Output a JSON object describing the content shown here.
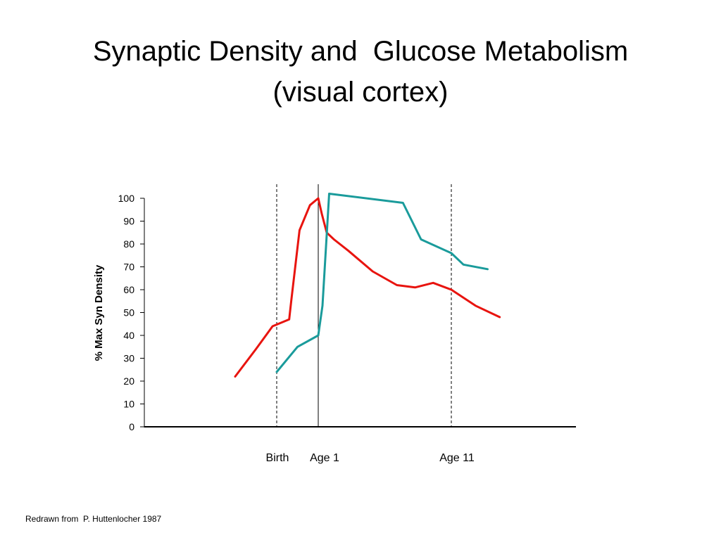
{
  "slide": {
    "title_line1": "Synaptic Density and  Glucose Metabolism",
    "title_line2": "(visual cortex)",
    "footer": "Redrawn from  P. Huttenlocher 1987"
  },
  "chart_data": {
    "type": "line",
    "ylabel": "% Max Syn Density",
    "ylim": [
      0,
      100
    ],
    "yticks": [
      0,
      10,
      20,
      30,
      40,
      50,
      60,
      70,
      80,
      90,
      100
    ],
    "x_markers": [
      {
        "label": "Birth",
        "style": "dashed"
      },
      {
        "label": "Age 1",
        "style": "solid"
      },
      {
        "label": "Age 11",
        "style": "dashed"
      }
    ],
    "series": [
      {
        "color": "#e8140f",
        "note": "red curve; x in age units: -1 = Birth, 0 = Age 1, 11 = Age 11",
        "points": [
          [
            -2.0,
            22
          ],
          [
            -1.5,
            34
          ],
          [
            -1.1,
            44
          ],
          [
            -0.7,
            47
          ],
          [
            -0.65,
            55
          ],
          [
            -0.45,
            86
          ],
          [
            -0.2,
            97
          ],
          [
            0.0,
            100
          ],
          [
            0.3,
            93
          ],
          [
            0.7,
            85
          ],
          [
            1.3,
            82
          ],
          [
            2.5,
            77
          ],
          [
            4.5,
            68
          ],
          [
            6.5,
            62
          ],
          [
            8.0,
            61
          ],
          [
            9.5,
            63
          ],
          [
            11.0,
            60
          ],
          [
            13.0,
            53
          ],
          [
            15.0,
            48
          ]
        ]
      },
      {
        "color": "#1a9b9b",
        "note": "teal curve",
        "points": [
          [
            -1.0,
            24
          ],
          [
            -0.5,
            35
          ],
          [
            0.0,
            40
          ],
          [
            0.35,
            53
          ],
          [
            0.9,
            102
          ],
          [
            7.0,
            98
          ],
          [
            8.5,
            82
          ],
          [
            11.0,
            76
          ],
          [
            12.0,
            71
          ],
          [
            14.0,
            69
          ]
        ]
      }
    ]
  }
}
